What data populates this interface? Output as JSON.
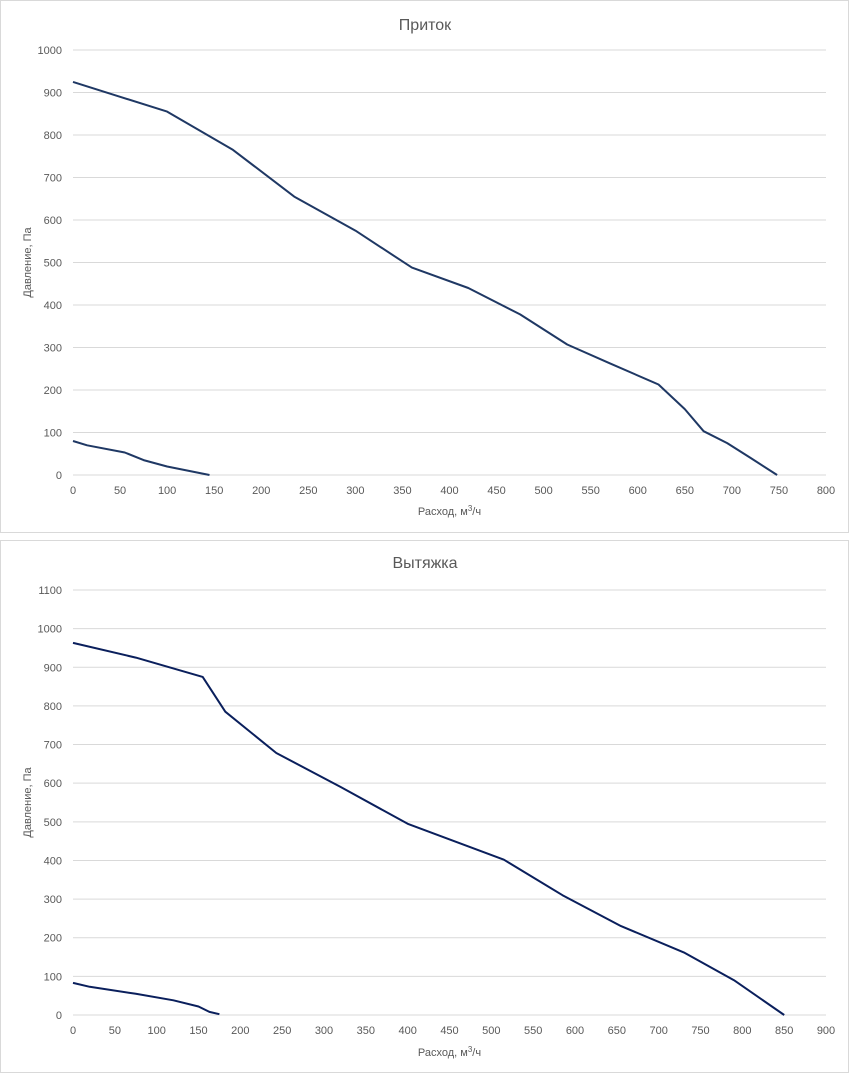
{
  "chart_data": [
    {
      "type": "line",
      "title": "Приток",
      "xlabel_main": "Расход, м",
      "xlabel_sup": "3",
      "xlabel_tail": "/ч",
      "ylabel": "Давление, Па",
      "xlim": [
        0,
        800
      ],
      "ylim": [
        0,
        1000
      ],
      "xticks": [
        0,
        50,
        100,
        150,
        200,
        250,
        300,
        350,
        400,
        450,
        500,
        550,
        600,
        650,
        700,
        750,
        800
      ],
      "yticks": [
        0,
        100,
        200,
        300,
        400,
        500,
        600,
        700,
        800,
        900,
        1000
      ],
      "grid": true,
      "series": [
        {
          "name": "curve-1",
          "color": "#1f3864",
          "points": [
            [
              0,
              925
            ],
            [
              50,
              890
            ],
            [
              100,
              855
            ],
            [
              170,
              765
            ],
            [
              235,
              655
            ],
            [
              300,
              575
            ],
            [
              360,
              488
            ],
            [
              420,
              440
            ],
            [
              475,
              378
            ],
            [
              525,
              307
            ],
            [
              570,
              263
            ],
            [
              622,
              213
            ],
            [
              650,
              155
            ],
            [
              670,
              103
            ],
            [
              695,
              75
            ],
            [
              720,
              40
            ],
            [
              748,
              0
            ]
          ]
        },
        {
          "name": "curve-2",
          "color": "#1f3864",
          "points": [
            [
              0,
              80
            ],
            [
              15,
              70
            ],
            [
              55,
              53
            ],
            [
              75,
              35
            ],
            [
              100,
              20
            ],
            [
              145,
              0
            ]
          ]
        }
      ]
    },
    {
      "type": "line",
      "title": "Вытяжка",
      "xlabel_main": "Расход, м",
      "xlabel_sup": "3",
      "xlabel_tail": "/ч",
      "ylabel": "Давление, Па",
      "xlim": [
        0,
        900
      ],
      "ylim": [
        0,
        1100
      ],
      "xticks": [
        0,
        50,
        100,
        150,
        200,
        250,
        300,
        350,
        400,
        450,
        500,
        550,
        600,
        650,
        700,
        750,
        800,
        850,
        900
      ],
      "yticks": [
        0,
        100,
        200,
        300,
        400,
        500,
        600,
        700,
        800,
        900,
        1000,
        1100
      ],
      "grid": true,
      "series": [
        {
          "name": "curve-1",
          "color": "#0a1f5c",
          "points": [
            [
              0,
              963
            ],
            [
              75,
              925
            ],
            [
              155,
              875
            ],
            [
              182,
              785
            ],
            [
              243,
              678
            ],
            [
              320,
              590
            ],
            [
              400,
              495
            ],
            [
              515,
              402
            ],
            [
              585,
              310
            ],
            [
              655,
              230
            ],
            [
              730,
              162
            ],
            [
              790,
              90
            ],
            [
              850,
              0
            ]
          ]
        },
        {
          "name": "curve-2",
          "color": "#0a1f5c",
          "points": [
            [
              0,
              83
            ],
            [
              20,
              73
            ],
            [
              75,
              55
            ],
            [
              120,
              38
            ],
            [
              150,
              22
            ],
            [
              163,
              8
            ],
            [
              175,
              2
            ]
          ]
        }
      ]
    }
  ]
}
